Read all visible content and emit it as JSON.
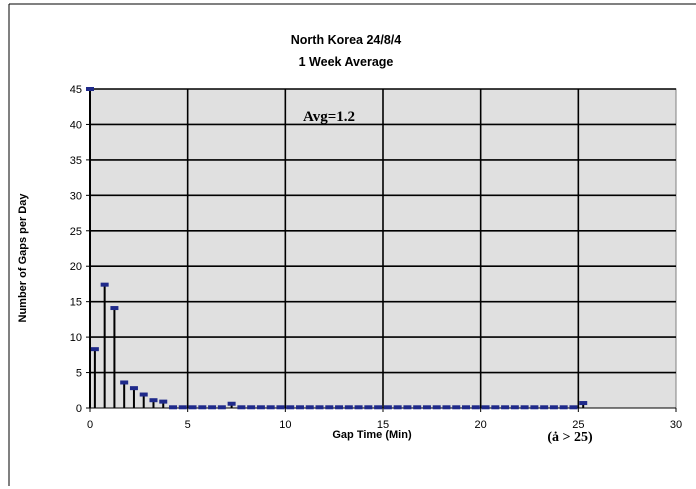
{
  "chart_data": {
    "type": "bar",
    "title_line1": "North Korea 24/8/4",
    "title_line2": "1 Week Average",
    "xlabel": "Gap Time (Min)",
    "ylabel": "Number of Gaps per Day",
    "annotation": "Avg=1.2",
    "overflow_note": "(ȧ > 25)",
    "xlim": [
      0,
      30
    ],
    "ylim": [
      0,
      45
    ],
    "x_ticks": [
      0,
      5,
      10,
      15,
      20,
      25,
      30
    ],
    "y_ticks": [
      0,
      5,
      10,
      15,
      20,
      25,
      30,
      35,
      40,
      45
    ],
    "grid": true,
    "legend": "none",
    "colors": {
      "plot_bg": "#e0e0e0",
      "marker": "#1f2a8a",
      "stem": "#000000"
    },
    "x": [
      0,
      0.25,
      0.75,
      1.25,
      1.75,
      2.25,
      2.75,
      3.25,
      3.75,
      4.25,
      4.75,
      5.25,
      5.75,
      6.25,
      6.75,
      7.25,
      7.75,
      8.25,
      8.75,
      9.25,
      9.75,
      10.25,
      10.75,
      11.25,
      11.75,
      12.25,
      12.75,
      13.25,
      13.75,
      14.25,
      14.75,
      15.25,
      15.75,
      16.25,
      16.75,
      17.25,
      17.75,
      18.25,
      18.75,
      19.25,
      19.75,
      20.25,
      20.75,
      21.25,
      21.75,
      22.25,
      22.75,
      23.25,
      23.75,
      24.25,
      24.75,
      25.25
    ],
    "values": [
      45,
      8.3,
      17.4,
      14.1,
      3.6,
      2.8,
      1.9,
      1.1,
      0.9,
      0.1,
      0.1,
      0.1,
      0.1,
      0.1,
      0.1,
      0.6,
      0.1,
      0.1,
      0.1,
      0.1,
      0.1,
      0.1,
      0.1,
      0.1,
      0.1,
      0.1,
      0.1,
      0.1,
      0.1,
      0.1,
      0.1,
      0.1,
      0.1,
      0.1,
      0.1,
      0.1,
      0.1,
      0.1,
      0.1,
      0.1,
      0.1,
      0.1,
      0.1,
      0.1,
      0.1,
      0.1,
      0.1,
      0.1,
      0.1,
      0.1,
      0.1,
      0.7
    ]
  }
}
